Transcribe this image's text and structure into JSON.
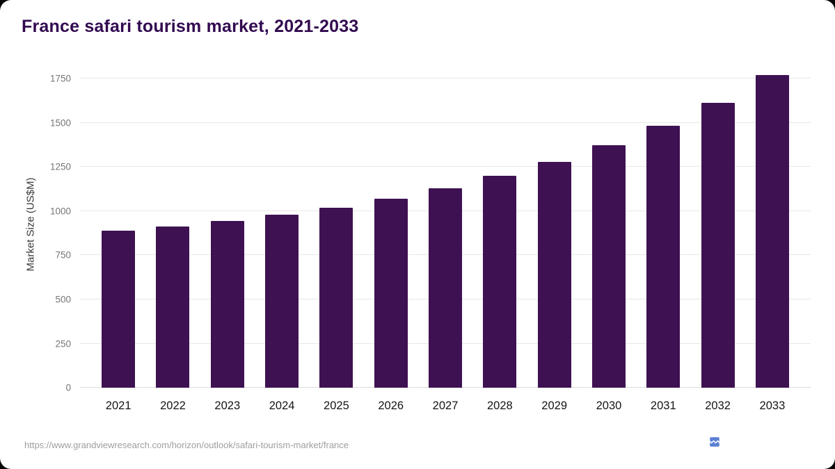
{
  "page": {
    "title": "France safari tourism market, 2021-2033",
    "footer_url": "https://www.grandviewresearch.com/horizon/outlook/safari-tourism-market/france"
  },
  "colors": {
    "bar": "#3e1152",
    "title": "#320a50",
    "grid": "#e7e7e7",
    "ytick_label": "#757575",
    "xtick_label": "#141414"
  },
  "icons": {
    "broken_image_icon": "broken-image"
  },
  "chart_data": {
    "type": "bar",
    "title": "France safari tourism market, 2021-2033",
    "categories": [
      "2021",
      "2022",
      "2023",
      "2024",
      "2025",
      "2026",
      "2027",
      "2028",
      "2029",
      "2030",
      "2031",
      "2032",
      "2033"
    ],
    "values": [
      890,
      915,
      945,
      980,
      1020,
      1070,
      1128,
      1200,
      1280,
      1375,
      1485,
      1615,
      1770
    ],
    "xlabel": "",
    "ylabel": "Market Size (US$M)",
    "ylim": [
      0,
      1850
    ],
    "yticks": [
      0,
      250,
      500,
      750,
      1000,
      1250,
      1500,
      1750
    ],
    "grid": "horizontal",
    "legend": "none",
    "bar_color": "#3e1152"
  }
}
